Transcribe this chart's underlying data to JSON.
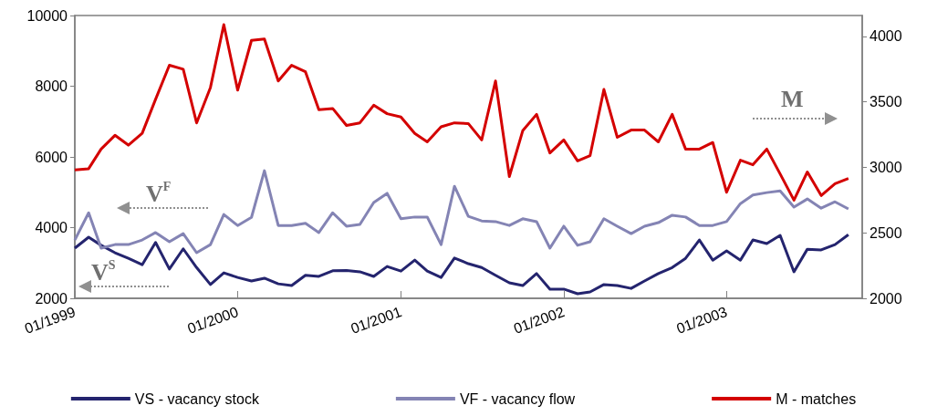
{
  "chart_data": {
    "type": "line",
    "x": [
      "1999-01",
      "1999-02",
      "1999-03",
      "1999-04",
      "1999-05",
      "1999-06",
      "1999-07",
      "1999-08",
      "1999-09",
      "1999-10",
      "1999-11",
      "1999-12",
      "2000-01",
      "2000-02",
      "2000-03",
      "2000-04",
      "2000-05",
      "2000-06",
      "2000-07",
      "2000-08",
      "2000-09",
      "2000-10",
      "2000-11",
      "2000-12",
      "2001-01",
      "2001-02",
      "2001-03",
      "2001-04",
      "2001-05",
      "2001-06",
      "2001-07",
      "2001-08",
      "2001-09",
      "2001-10",
      "2001-11",
      "2001-12",
      "2002-01",
      "2002-02",
      "2002-03",
      "2002-04",
      "2002-05",
      "2002-06",
      "2002-07",
      "2002-08",
      "2002-09",
      "2002-10",
      "2002-11",
      "2002-12",
      "2003-01",
      "2003-02",
      "2003-03",
      "2003-04",
      "2003-05",
      "2003-06",
      "2003-07",
      "2003-08",
      "2003-09",
      "2003-10"
    ],
    "series": [
      {
        "name": "VS - vacancy stock",
        "color": "#24246e",
        "values": [
          3420,
          3730,
          3500,
          3290,
          3130,
          2950,
          3580,
          2830,
          3400,
          2870,
          2390,
          2720,
          2590,
          2490,
          2570,
          2410,
          2360,
          2650,
          2620,
          2780,
          2790,
          2750,
          2620,
          2900,
          2770,
          3080,
          2770,
          2590,
          3140,
          2980,
          2870,
          2650,
          2440,
          2360,
          2700,
          2260,
          2260,
          2130,
          2180,
          2390,
          2360,
          2280,
          2490,
          2700,
          2870,
          3130,
          3650,
          3080,
          3340,
          3080,
          3650,
          3550,
          3780,
          2750,
          3390,
          3370,
          3520,
          3800
        ]
      },
      {
        "name": "VF - vacancy flow",
        "color": "#8484b4",
        "values": [
          3650,
          4420,
          3420,
          3520,
          3520,
          3650,
          3860,
          3600,
          3830,
          3290,
          3520,
          4370,
          4060,
          4290,
          5610,
          4060,
          4060,
          4120,
          3860,
          4420,
          4040,
          4090,
          4710,
          4970,
          4250,
          4300,
          4300,
          3520,
          5170,
          4320,
          4190,
          4170,
          4060,
          4250,
          4170,
          3420,
          4040,
          3500,
          3600,
          4250,
          4040,
          3830,
          4040,
          4140,
          4350,
          4300,
          4060,
          4060,
          4170,
          4680,
          4920,
          4990,
          5040,
          4580,
          4810,
          4550,
          4730,
          4530
        ]
      },
      {
        "name": "M - matches",
        "color": "#d40000",
        "axis": "y2",
        "values": [
          2980,
          2990,
          3140,
          3245,
          3170,
          3260,
          3520,
          3780,
          3750,
          3340,
          3610,
          4090,
          3590,
          3970,
          3980,
          3660,
          3780,
          3730,
          3440,
          3450,
          3320,
          3340,
          3475,
          3410,
          3385,
          3260,
          3195,
          3310,
          3340,
          3335,
          3210,
          3660,
          2930,
          3280,
          3405,
          3110,
          3210,
          3050,
          3090,
          3595,
          3230,
          3285,
          3285,
          3195,
          3405,
          3140,
          3140,
          3190,
          2810,
          3055,
          3020,
          3140,
          2950,
          2750,
          2965,
          2785,
          2875,
          2915
        ]
      }
    ],
    "xlim": [
      "1999-01",
      "2003-11"
    ],
    "xticks": [
      {
        "value": "1999-01",
        "label": "01/1999"
      },
      {
        "value": "2000-01",
        "label": "01/2000"
      },
      {
        "value": "2001-01",
        "label": "01/2001"
      },
      {
        "value": "2002-01",
        "label": "01/2002"
      },
      {
        "value": "2003-01",
        "label": "01/2003"
      }
    ],
    "ylim": [
      2000,
      10000
    ],
    "yticks": [
      2000,
      4000,
      6000,
      8000,
      10000
    ],
    "y2lim": [
      2000,
      4160
    ],
    "y2ticks": [
      2000,
      2500,
      3000,
      3500,
      4000
    ],
    "annotations": [
      "V$^{F}$",
      "V$^{S}$",
      "M"
    ],
    "grid": false,
    "legend": "bottom",
    "marker": "none"
  }
}
